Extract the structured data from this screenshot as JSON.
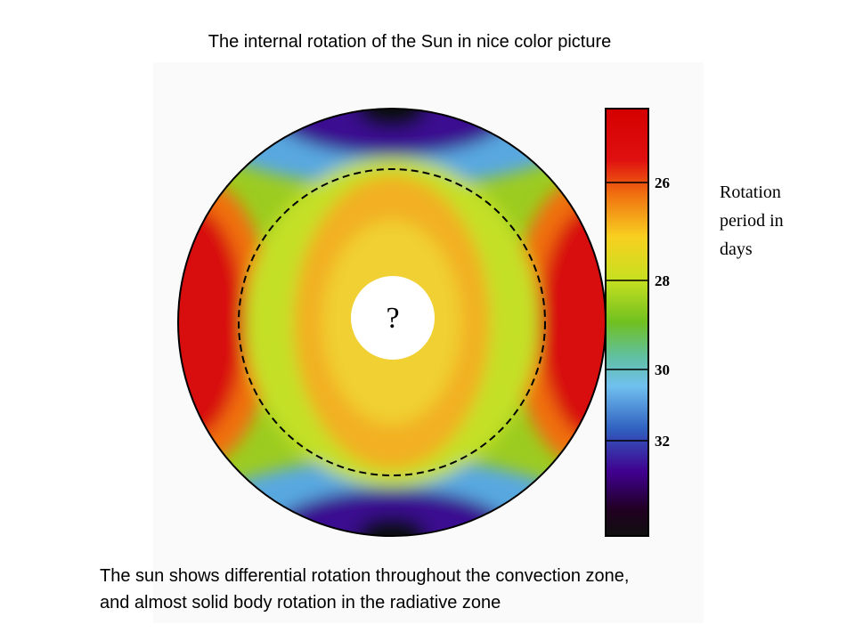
{
  "title": "The internal rotation of the Sun in nice color picture",
  "figure": {
    "center_label": "?",
    "colorbar": {
      "ticks": [
        26,
        28,
        30,
        32
      ],
      "label": "Rotation period in days"
    }
  },
  "caption": [
    "The sun shows differential rotation throughout the convection zone,",
    "and almost solid body rotation in the radiative zone"
  ]
}
